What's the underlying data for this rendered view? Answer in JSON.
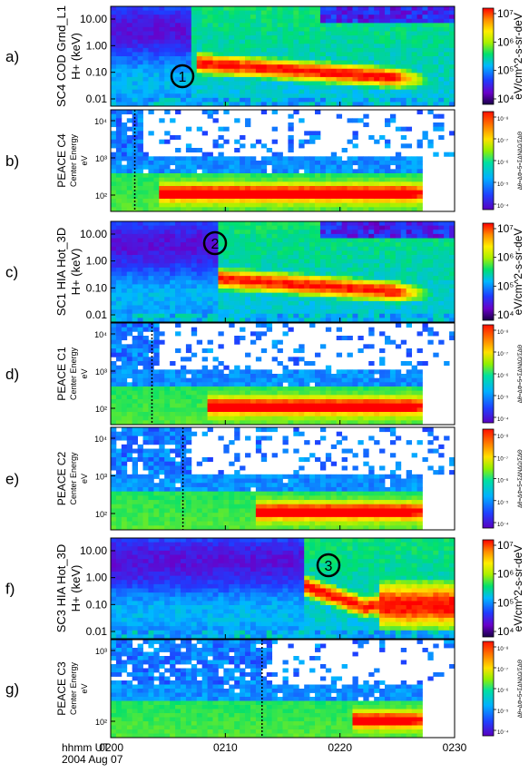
{
  "panels": [
    {
      "letter": "a)",
      "ylabel": [
        "SC4 COD Grnd_L1",
        "H+ (keV)"
      ],
      "yticks": [
        "10.00",
        "1.00",
        "0.10",
        "0.01"
      ],
      "cbar_ticks": [
        "10⁷",
        "10⁶",
        "10⁵",
        "10⁴"
      ],
      "cbar_label": "eV/cm^2-s-sr-deV",
      "marker": "1",
      "onset": 0.23,
      "start": 0.24,
      "mean": 0.16,
      "style": "hot"
    },
    {
      "letter": "b)",
      "ylabel": [
        "PEACE C4",
        "Center Energy",
        "eV"
      ],
      "yticks": [
        "10⁴",
        "10³",
        "10²"
      ],
      "cbar_ticks": [
        "10⁻⁸",
        "10⁻⁷",
        "10⁻⁶",
        "10⁻⁵",
        "10⁻⁴"
      ],
      "cbar_label": "Δθ=ΔΦ=5=ΣΔΝΔΩ/ΣΔΘ",
      "dotted_line": 0.07,
      "start": 0.13,
      "style": "peace"
    },
    {
      "letter": "c)",
      "ylabel": [
        "SC1 HIA Hot_3D",
        "H+ (keV)"
      ],
      "yticks": [
        "10.00",
        "1.00",
        "0.10",
        "0.01"
      ],
      "cbar_ticks": [
        "10⁷",
        "10⁶",
        "10⁵",
        "10⁴"
      ],
      "cbar_label": "eV/cm^2-s-sr-deV",
      "marker": "2",
      "onset": 0.3,
      "start": 0.31,
      "mean": 0.2,
      "style": "hot"
    },
    {
      "letter": "d)",
      "ylabel": [
        "PEACE C1",
        "Center Energy",
        "eV"
      ],
      "yticks": [
        "10⁴",
        "10³",
        "10²"
      ],
      "cbar_ticks": [
        "10⁻⁸",
        "10⁻⁷",
        "10⁻⁶",
        "10⁻⁵",
        "10⁻⁴"
      ],
      "cbar_label": "Δθ=ΔΦ=5=ΣΔΝΔΩ/ΣΔΘ",
      "dotted_line": 0.12,
      "start": 0.28,
      "style": "peace"
    },
    {
      "letter": "e)",
      "ylabel": [
        "PEACE C2",
        "Center Energy",
        "eV"
      ],
      "yticks": [
        "10⁴",
        "10³",
        "10²"
      ],
      "cbar_ticks": [
        "10⁻⁸",
        "10⁻⁷",
        "10⁻⁶",
        "10⁻⁵",
        "10⁻⁴"
      ],
      "cbar_label": "Δθ=ΔΦ=5=ΣΔΝΔΩ/ΣΔΘ",
      "dotted_line": 0.21,
      "start": 0.42,
      "style": "peace"
    },
    {
      "letter": "f)",
      "ylabel": [
        "SC3 HIA Hot_3D",
        "H+ (keV)"
      ],
      "yticks": [
        "10.00",
        "1.00",
        "0.10",
        "0.01"
      ],
      "cbar_ticks": [
        "10⁷",
        "10⁶",
        "10⁵",
        "10⁴"
      ],
      "cbar_label": "eV/cm^2-s-sr-deV",
      "marker": "3",
      "onset": 0.56,
      "start": 0.55,
      "mean": 0.2,
      "style": "hot3"
    },
    {
      "letter": "g)",
      "ylabel": [
        "PEACE C3",
        "Center Energy",
        "eV"
      ],
      "yticks": [
        "10³",
        "10²"
      ],
      "cbar_ticks": [
        "10⁻⁸",
        "10⁻⁷",
        "10⁻⁶",
        "10⁻⁵",
        "10⁻⁴"
      ],
      "cbar_label": "Δθ=ΔΦ=5=ΣΔΝΔΩ/ΣΔΘ",
      "dotted_line": 0.44,
      "start": 0.7,
      "style": "peace"
    }
  ],
  "xaxis": {
    "head": "hhmm UT",
    "date": "2004 Aug 07",
    "ticks": [
      "0200",
      "0210",
      "0220",
      "0230"
    ]
  },
  "chart_data": {
    "type": "heatmap",
    "title": "",
    "xlabel": "hhmm UT",
    "date": "2004 Aug 07",
    "x_ticks": [
      "0200",
      "0210",
      "0220",
      "0230"
    ],
    "x_range": [
      "0200",
      "0230"
    ],
    "panels": [
      "a)",
      "b)",
      "c)",
      "d)",
      "e)",
      "f)",
      "g)"
    ],
    "hia_energy_range_keV": [
      0.01,
      20
    ],
    "hia_colorbar_range": [
      "10⁴",
      "10⁷"
    ],
    "peace_colorbar_range": [
      "10⁻⁸",
      "10⁻⁴"
    ],
    "event_markers": [
      {
        "label": "1",
        "panel": "a)",
        "time": "0207"
      },
      {
        "label": "2",
        "panel": "c)",
        "time": "0209"
      },
      {
        "label": "3",
        "panel": "f)",
        "time": "0216"
      }
    ],
    "boundary_times": [
      {
        "panel": "b)",
        "time": "0202"
      },
      {
        "panel": "d)",
        "time": "0203.5"
      },
      {
        "panel": "e)",
        "time": "0206.5"
      },
      {
        "panel": "g)",
        "time": "0213"
      }
    ]
  }
}
